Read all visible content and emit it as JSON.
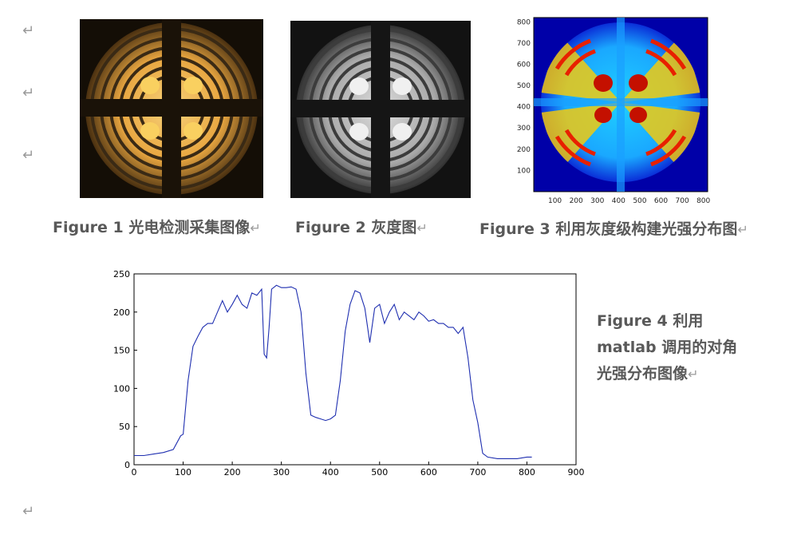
{
  "return_mark": "↵",
  "figure1": {
    "caption": "Figure 1 光电检测采集图像"
  },
  "figure2": {
    "caption": "Figure 2 灰度图"
  },
  "figure3": {
    "caption": "Figure 3 利用灰度级构建光强分布图",
    "x_ticks": [
      "100",
      "200",
      "300",
      "400",
      "500",
      "600",
      "700",
      "800"
    ],
    "y_ticks": [
      "100",
      "200",
      "300",
      "400",
      "500",
      "600",
      "700",
      "800"
    ]
  },
  "figure4": {
    "caption_lines": [
      "Figure 4 利用",
      "matlab 调用的对角",
      "光强分布图像"
    ],
    "chart_data": {
      "type": "line",
      "title": "",
      "xlabel": "",
      "ylabel": "",
      "xlim": [
        0,
        900
      ],
      "ylim": [
        0,
        250
      ],
      "x_ticks": [
        0,
        100,
        200,
        300,
        400,
        500,
        600,
        700,
        800,
        900
      ],
      "y_ticks": [
        0,
        50,
        100,
        150,
        200,
        250
      ],
      "line_color": "#1f2fb0",
      "series": [
        {
          "x": [
            0,
            20,
            40,
            60,
            80,
            95,
            100,
            110,
            120,
            130,
            140,
            150,
            160,
            170,
            180,
            190,
            200,
            210,
            220,
            230,
            240,
            250,
            260,
            265,
            270,
            275,
            280,
            290,
            300,
            310,
            320,
            330,
            340,
            350,
            360,
            370,
            380,
            390,
            400,
            410,
            420,
            430,
            440,
            450,
            460,
            470,
            480,
            490,
            500,
            510,
            520,
            530,
            540,
            550,
            560,
            570,
            580,
            590,
            600,
            610,
            620,
            630,
            640,
            650,
            660,
            670,
            680,
            690,
            700,
            710,
            720,
            740,
            760,
            780,
            800,
            810
          ],
          "y": [
            12,
            12,
            14,
            16,
            20,
            38,
            40,
            110,
            155,
            168,
            180,
            185,
            185,
            200,
            215,
            200,
            210,
            222,
            210,
            205,
            225,
            222,
            230,
            145,
            140,
            180,
            230,
            235,
            232,
            232,
            233,
            230,
            200,
            120,
            65,
            62,
            60,
            58,
            60,
            65,
            110,
            175,
            210,
            228,
            225,
            205,
            160,
            205,
            210,
            185,
            200,
            210,
            190,
            200,
            195,
            190,
            200,
            195,
            188,
            190,
            185,
            185,
            180,
            180,
            172,
            180,
            140,
            85,
            55,
            15,
            10,
            8,
            8,
            8,
            10,
            10
          ]
        }
      ]
    }
  }
}
